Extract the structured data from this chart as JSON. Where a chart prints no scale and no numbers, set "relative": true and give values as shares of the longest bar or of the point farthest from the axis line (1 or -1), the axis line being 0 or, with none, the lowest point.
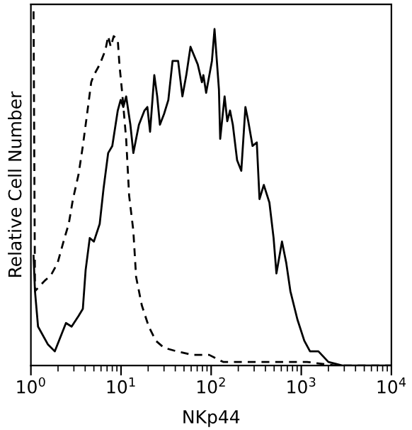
{
  "chart_data": {
    "type": "line",
    "relative": true,
    "xlabel": "NKp44",
    "ylabel": "Relative Cell Number",
    "log": "x",
    "grid": false,
    "legend": false,
    "tick_labels": "x",
    "marker": "none",
    "xlim": [
      1,
      10000
    ],
    "xticks": [
      {
        "value": 1,
        "label": "10$^{0}$"
      },
      {
        "value": 10,
        "label": "10$^{1}$"
      },
      {
        "value": 100,
        "label": "10$^{2}$"
      },
      {
        "value": 1000,
        "label": "10$^{3}$"
      },
      {
        "value": 10000,
        "label": "10$^{4}$"
      }
    ],
    "series": [
      {
        "color": "#000000",
        "line_style": "solid",
        "x": [
          1.07,
          1.11,
          1.2,
          1.54,
          1.84,
          2.2,
          2.45,
          2.83,
          3.38,
          3.77,
          4.05,
          4.5,
          5.0,
          5.8,
          6.4,
          7.2,
          8.0,
          9.2,
          9.9,
          10.6,
          11.4,
          12.7,
          13.7,
          14.7,
          15.8,
          18.2,
          19.6,
          21,
          23.4,
          25.2,
          27,
          30,
          33.5,
          37.3,
          43,
          48,
          53,
          59,
          71,
          79,
          82,
          88,
          102,
          109,
          122,
          126,
          141,
          151,
          162,
          174,
          194,
          216,
          240,
          258,
          288,
          321,
          344,
          384,
          443,
          493,
          530,
          611,
          681,
          757,
          906,
          1080,
          1250,
          1550,
          2000,
          2850,
          10000
        ],
        "values": [
          0.31,
          0.21,
          0.11,
          0.06,
          0.04,
          0.09,
          0.12,
          0.11,
          0.14,
          0.16,
          0.27,
          0.36,
          0.35,
          0.4,
          0.5,
          0.6,
          0.62,
          0.72,
          0.75,
          0.73,
          0.76,
          0.68,
          0.6,
          0.64,
          0.68,
          0.72,
          0.73,
          0.66,
          0.82,
          0.76,
          0.68,
          0.71,
          0.75,
          0.86,
          0.86,
          0.76,
          0.82,
          0.9,
          0.85,
          0.8,
          0.82,
          0.77,
          0.86,
          0.95,
          0.78,
          0.64,
          0.76,
          0.69,
          0.72,
          0.68,
          0.58,
          0.55,
          0.73,
          0.69,
          0.62,
          0.63,
          0.47,
          0.51,
          0.46,
          0.36,
          0.26,
          0.35,
          0.29,
          0.21,
          0.13,
          0.07,
          0.04,
          0.04,
          0.01,
          0,
          0
        ]
      },
      {
        "color": "#000000",
        "line_style": "dashed",
        "x": [
          1.07,
          1.11,
          1.43,
          1.59,
          1.71,
          1.98,
          2.36,
          2.63,
          2.93,
          3.38,
          3.77,
          4.2,
          4.67,
          5.0,
          5.8,
          6.7,
          7.2,
          7.7,
          8.3,
          9.2,
          9.6,
          10.3,
          11.4,
          12.3,
          13.7,
          14.7,
          17,
          20.3,
          24.3,
          30,
          41.6,
          61.6,
          95,
          136,
          278,
          1160,
          2380,
          10000
        ],
        "values": [
          1.0,
          0.21,
          0.24,
          0.25,
          0.26,
          0.29,
          0.36,
          0.4,
          0.47,
          0.54,
          0.62,
          0.71,
          0.8,
          0.82,
          0.85,
          0.89,
          0.93,
          0.9,
          0.93,
          0.92,
          0.85,
          0.77,
          0.64,
          0.48,
          0.38,
          0.25,
          0.17,
          0.11,
          0.07,
          0.05,
          0.04,
          0.03,
          0.03,
          0.01,
          0.01,
          0.01,
          0,
          0
        ]
      }
    ]
  }
}
